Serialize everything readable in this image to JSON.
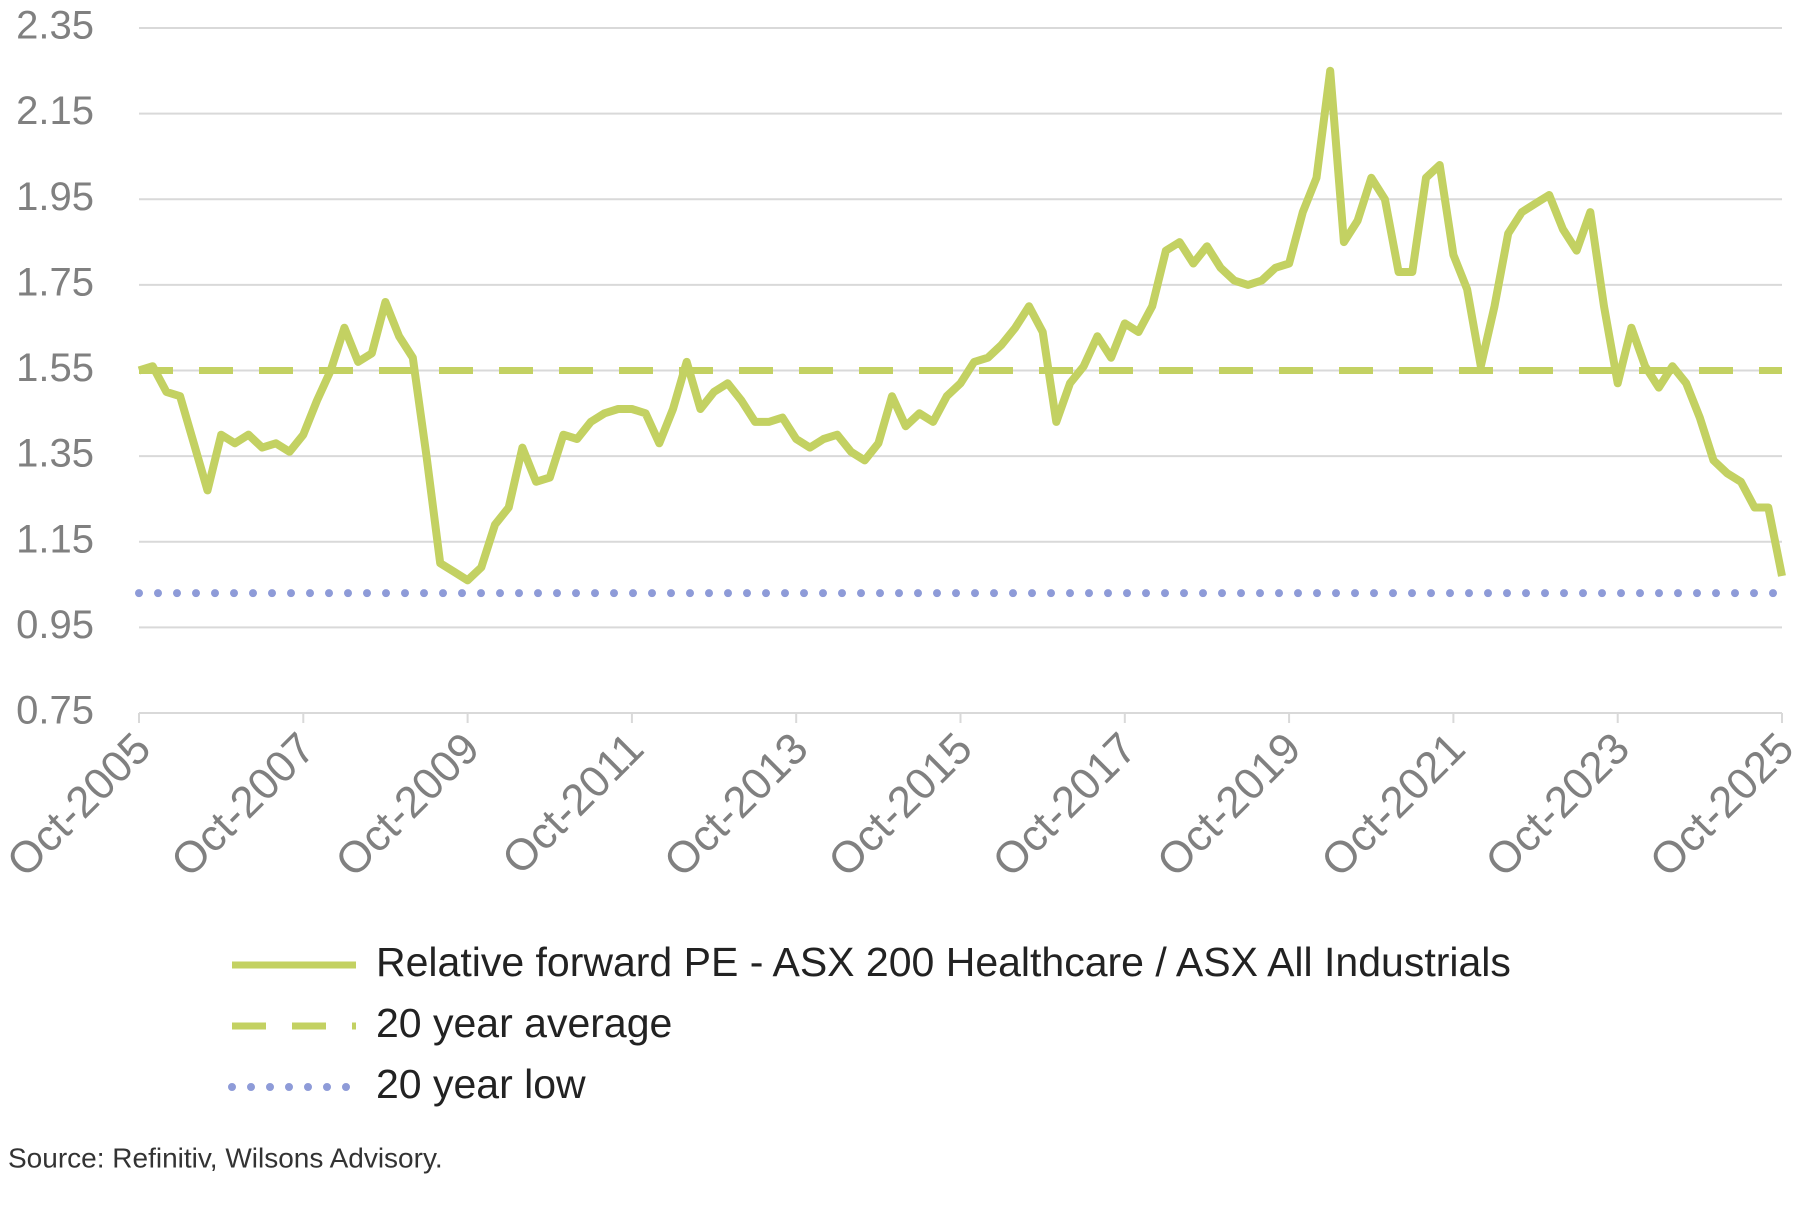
{
  "chart_data": {
    "type": "line",
    "categories": [
      "Oct-2005",
      null,
      null,
      null,
      null,
      null,
      null,
      null,
      null,
      null,
      null,
      null,
      "Oct-2007",
      null,
      null,
      null,
      null,
      null,
      null,
      null,
      null,
      null,
      null,
      null,
      "Oct-2009",
      null,
      null,
      null,
      null,
      null,
      null,
      null,
      null,
      null,
      null,
      null,
      "Oct-2011",
      null,
      null,
      null,
      null,
      null,
      null,
      null,
      null,
      null,
      null,
      null,
      "Oct-2013",
      null,
      null,
      null,
      null,
      null,
      null,
      null,
      null,
      null,
      null,
      null,
      "Oct-2015",
      null,
      null,
      null,
      null,
      null,
      null,
      null,
      null,
      null,
      null,
      null,
      "Oct-2017",
      null,
      null,
      null,
      null,
      null,
      null,
      null,
      null,
      null,
      null,
      null,
      "Oct-2019",
      null,
      null,
      null,
      null,
      null,
      null,
      null,
      null,
      null,
      null,
      null,
      "Oct-2021",
      null,
      null,
      null,
      null,
      null,
      null,
      null,
      null,
      null,
      null,
      null,
      "Oct-2023",
      null,
      null,
      null,
      null,
      null,
      null,
      null,
      null,
      null,
      null,
      null,
      "Oct-2025"
    ],
    "series": [
      {
        "name": "Relative forward PE - ASX 200 Healthcare / ASX All Industrials",
        "color": "#c3d162",
        "values": [
          1.55,
          1.56,
          1.5,
          1.49,
          1.38,
          1.27,
          1.4,
          1.38,
          1.4,
          1.37,
          1.38,
          1.36,
          1.4,
          1.48,
          1.55,
          1.65,
          1.57,
          1.59,
          1.71,
          1.63,
          1.58,
          1.35,
          1.1,
          1.08,
          1.06,
          1.09,
          1.19,
          1.23,
          1.37,
          1.29,
          1.3,
          1.4,
          1.39,
          1.43,
          1.45,
          1.46,
          1.46,
          1.45,
          1.38,
          1.46,
          1.57,
          1.46,
          1.5,
          1.52,
          1.48,
          1.43,
          1.43,
          1.44,
          1.39,
          1.37,
          1.39,
          1.4,
          1.36,
          1.34,
          1.38,
          1.49,
          1.42,
          1.45,
          1.43,
          1.49,
          1.52,
          1.57,
          1.58,
          1.61,
          1.65,
          1.7,
          1.64,
          1.43,
          1.52,
          1.56,
          1.63,
          1.58,
          1.66,
          1.64,
          1.7,
          1.83,
          1.85,
          1.8,
          1.84,
          1.79,
          1.76,
          1.75,
          1.76,
          1.79,
          1.8,
          1.92,
          2.0,
          2.25,
          1.85,
          1.9,
          2.0,
          1.95,
          1.78,
          1.78,
          2.0,
          2.03,
          1.82,
          1.74,
          1.56,
          1.7,
          1.87,
          1.92,
          1.94,
          1.96,
          1.88,
          1.83,
          1.92,
          1.7,
          1.52,
          1.65,
          1.56,
          1.51,
          1.56,
          1.52,
          1.44,
          1.34,
          1.31,
          1.29,
          1.23,
          1.23,
          1.07
        ]
      }
    ],
    "reference_lines": [
      {
        "name": "20 year average",
        "value": 1.55,
        "color": "#c3d162",
        "style": "dashed"
      },
      {
        "name": "20 year low",
        "value": 1.03,
        "color": "#8e9bd8",
        "style": "dotted"
      }
    ],
    "ylim": [
      0.75,
      2.35
    ],
    "yticks": [
      0.75,
      0.95,
      1.15,
      1.35,
      1.55,
      1.75,
      1.95,
      2.15,
      2.35
    ],
    "grid": true,
    "source": "Source: Refinitiv, Wilsons Advisory."
  }
}
